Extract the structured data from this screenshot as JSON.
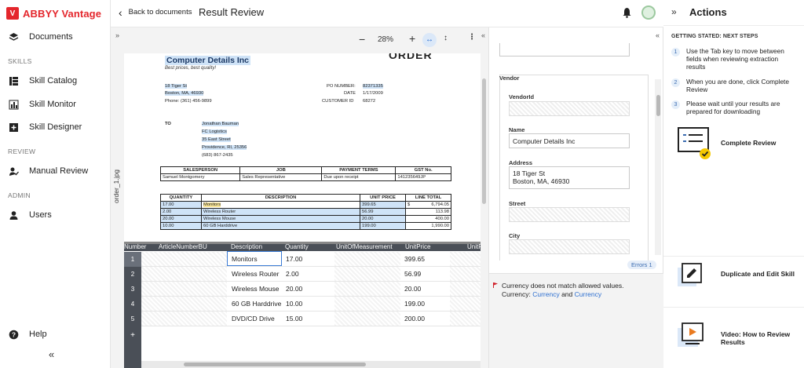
{
  "app": {
    "brand": "ABBYY Vantage",
    "logo_glyph": "V"
  },
  "nav": {
    "documents": "Documents",
    "section_skills": "SKILLS",
    "skill_catalog": "Skill Catalog",
    "skill_monitor": "Skill Monitor",
    "skill_designer": "Skill Designer",
    "section_review": "REVIEW",
    "manual_review": "Manual Review",
    "section_admin": "ADMIN",
    "users": "Users",
    "help": "Help",
    "collapse": "«"
  },
  "topbar": {
    "back_label": "Back to documents",
    "title": "Result Review"
  },
  "viewer": {
    "zoom": "28%",
    "file_tab": "order_1.jpg",
    "expand": "»",
    "collapse": "«"
  },
  "document": {
    "order_word": "ORDER",
    "company": "Computer Details Inc",
    "slogan": "Best prices, best quality!",
    "addr1": "18 Tiger St",
    "addr2": "Boston, MA, 46930",
    "phone": "Phone: (361) 456-9899",
    "po_label": "PO NUMBER:",
    "po_value": "82371335",
    "date_label": "DATE",
    "date_value": "1/17/2009",
    "cust_label": "CUSTOMER ID",
    "cust_value": "68272",
    "to_label": "TO",
    "to_name": "Jonathan Bauman",
    "to_company": "FC Logistics",
    "to_street": "35 East Street",
    "to_city": "Providence, RI, 25356",
    "to_phone": "(683) 867-2435",
    "info_headers": [
      "SALESPERSON",
      "JOB",
      "PAYMENT TERMS",
      "GST No."
    ],
    "info_values": [
      "Samuel Montgomery",
      "Sales Representative",
      "Due upon receipt",
      "141235649JP"
    ],
    "item_headers": [
      "QUANTITY",
      "DESCRIPTION",
      "UNIT PRICE",
      "LINE TOTAL"
    ],
    "items": [
      {
        "qty": "17.00",
        "desc": "Monitors",
        "price": "399.65",
        "cur": "$",
        "total": "6,794.05"
      },
      {
        "qty": "2.00",
        "desc": "Wireless Router",
        "price": "56.99",
        "cur": "",
        "total": "113.98"
      },
      {
        "qty": "20.00",
        "desc": "Wireless Mouse",
        "price": "20.00",
        "cur": "",
        "total": "400.00"
      },
      {
        "qty": "10.00",
        "desc": "60 GB Harddrive",
        "price": "199.00",
        "cur": "",
        "total": "1,990.00"
      }
    ]
  },
  "grid": {
    "columns": [
      "Number",
      "ArticleNumberBU",
      "Description",
      "Quantity",
      "UnitOfMeasurement",
      "UnitPrice",
      "UnitPriceDe"
    ],
    "rows": [
      {
        "n": "1",
        "desc": "Monitors",
        "qty": "17.00",
        "price": "399.65"
      },
      {
        "n": "2",
        "desc": "Wireless Router",
        "qty": "2.00",
        "price": "56.99"
      },
      {
        "n": "3",
        "desc": "Wireless Mouse",
        "qty": "20.00",
        "price": "20.00"
      },
      {
        "n": "4",
        "desc": "60 GB Harddrive",
        "qty": "10.00",
        "price": "199.00"
      },
      {
        "n": "5",
        "desc": "DVD/CD Drive",
        "qty": "15.00",
        "price": "200.00"
      }
    ],
    "add": "+"
  },
  "fields": {
    "group_vendor": "Vendor",
    "vendor_id_label": "VendorId",
    "vendor_id_value": "",
    "name_label": "Name",
    "name_value": "Computer Details Inc",
    "address_label": "Address",
    "address_line1": "18 Tiger St",
    "address_line2": "Boston, MA, 46930",
    "street_label": "Street",
    "city_label": "City",
    "collapse": "«",
    "errors_badge": "Errors 1",
    "error_message": "Currency does not match allowed values.",
    "error_detail_prefix": "Currency:",
    "error_link1": "Currency",
    "error_and": "and",
    "error_link2": "Currency"
  },
  "actions": {
    "collapse": "»",
    "title": "Actions",
    "subtitle": "GETTING STATED: NEXT STEPS",
    "steps": [
      {
        "num": "1",
        "text": "Use the Tab key to move between fields when reviewing extraction results"
      },
      {
        "num": "2",
        "text": "When you are done, click Complete Review"
      },
      {
        "num": "3",
        "text": "Please wait until your results are prepared for downloading"
      }
    ],
    "complete_review": "Complete Review",
    "duplicate_edit": "Duplicate and Edit Skill",
    "video_review": "Video: How to Review Results"
  },
  "colors": {
    "brand": "#e4262c",
    "grid_header": "#4a4f57",
    "link": "#2d6fd0",
    "highlight": "#cfe3f7",
    "field_highlight": "#fbe89a"
  },
  "icons": [
    "layers-icon",
    "catalog-icon",
    "bar-chart-icon",
    "plus-square-icon",
    "user-check-icon",
    "user-icon",
    "help-icon",
    "bell-icon",
    "avatar",
    "flag-icon",
    "checklist-icon",
    "edit-icon",
    "video-icon"
  ]
}
